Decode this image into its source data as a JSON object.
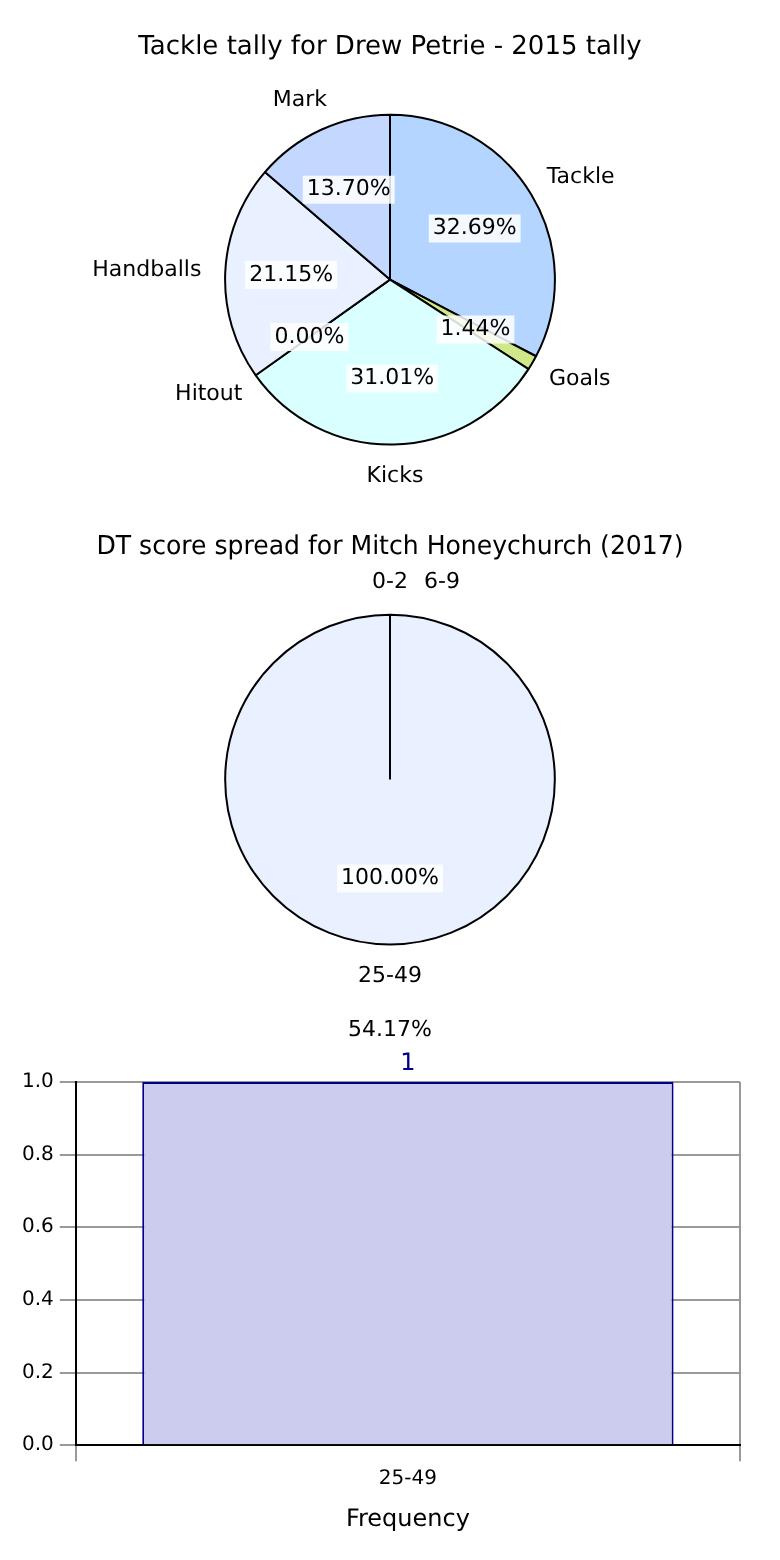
{
  "chart_data": [
    {
      "type": "pie",
      "title": "Tackle tally for Drew Petrie - 2015 tally",
      "categories": [
        "Tackle",
        "Goals",
        "Kicks",
        "Hitout",
        "Handballs",
        "Mark"
      ],
      "values": [
        32.69,
        1.44,
        31.01,
        0,
        21.15,
        13.7
      ],
      "colors": [
        "#b3d5ff",
        "#d0e88a",
        "#d9ffff",
        "#ffffff",
        "#e9f0ff",
        "#c4d8ff"
      ],
      "value_labels": [
        "32.69%",
        "1.44%",
        "31.01%",
        "0.00%",
        "21.15%",
        "13.70%"
      ]
    },
    {
      "type": "pie",
      "title": "DT score spread for Mitch Honeychurch (2017)",
      "categories": [
        "0-2",
        "6-9",
        "25-49"
      ],
      "values": [
        0,
        0,
        100
      ],
      "colors": [
        "#ffffff",
        "#c4d8ff",
        "#e9f0ff"
      ],
      "value_labels": [
        null,
        null,
        "100.00%"
      ],
      "annotations": [
        "54.17%"
      ]
    },
    {
      "type": "bar",
      "xlabel": "Frequency",
      "categories": [
        "25-49"
      ],
      "values": [
        1
      ],
      "color": "#ccccee",
      "ylim": [
        0,
        1
      ],
      "yticks": [
        {
          "value": 0,
          "label": "0.0"
        },
        {
          "value": 0.2,
          "label": "0.2"
        },
        {
          "value": 0.4,
          "label": "0.4"
        },
        {
          "value": 0.6,
          "label": "0.6"
        },
        {
          "value": 0.8,
          "label": "0.8"
        },
        {
          "value": 1,
          "label": "1.0"
        }
      ],
      "grid": true,
      "data_labels": true
    }
  ]
}
